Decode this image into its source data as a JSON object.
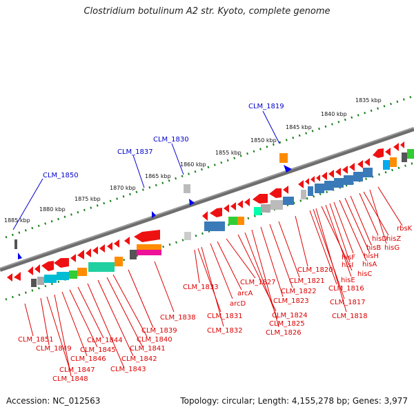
{
  "title": "Clostridium botulinum A2 str. Kyoto, complete genome",
  "footer": {
    "accession": "Accession: NC_012563",
    "stats": "Topology: circular; Length: 4,155,278 bp; Genes: 3,977"
  },
  "colors": {
    "backbone": "#808080",
    "dots": "#1a7f1a",
    "reverse_gene": "#ee1111",
    "forward_gene": "#0000ee",
    "red_label": "#dd0000",
    "blue_label": "#0000cc",
    "line_red": "#dd0000",
    "line_blue": "#0000cc"
  },
  "scale_labels": [
    "1885 kbp",
    "1880 kbp",
    "1875 kbp",
    "1870 kbp",
    "1865 kbp",
    "1860 kbp",
    "1855 kbp",
    "1850 kbp",
    "1845 kbp",
    "1840 kbp",
    "1835 kbp"
  ],
  "forward_labels": [
    "CLM_1850",
    "CLM_1837",
    "CLM_1830",
    "CLM_1819"
  ],
  "reverse_labels_bottom": [
    "CLM_1851",
    "CLM_1849",
    "CLM_1847",
    "CLM_1848",
    "CLM_1846",
    "CLM_1845",
    "CLM_1844",
    "CLM_1843",
    "CLM_1842",
    "CLM_1841",
    "CLM_1840",
    "CLM_1839",
    "CLM_1838"
  ],
  "reverse_labels_mid": [
    "CLM_1833",
    "CLM_1831",
    "CLM_1832",
    "arcD",
    "arcA",
    "CLM_1827",
    "CLM_1824",
    "CLM_1825",
    "CLM_1826",
    "CLM_1823",
    "CLM_1822",
    "CLM_1821",
    "CLM_1820"
  ],
  "reverse_labels_right": [
    "CLM_1816",
    "CLM_1817",
    "CLM_1818",
    "hisC",
    "hisE",
    "hisI",
    "hisF",
    "hisA",
    "hisH",
    "hisB",
    "hisD",
    "hisZ",
    "hisG",
    "rbsK"
  ]
}
